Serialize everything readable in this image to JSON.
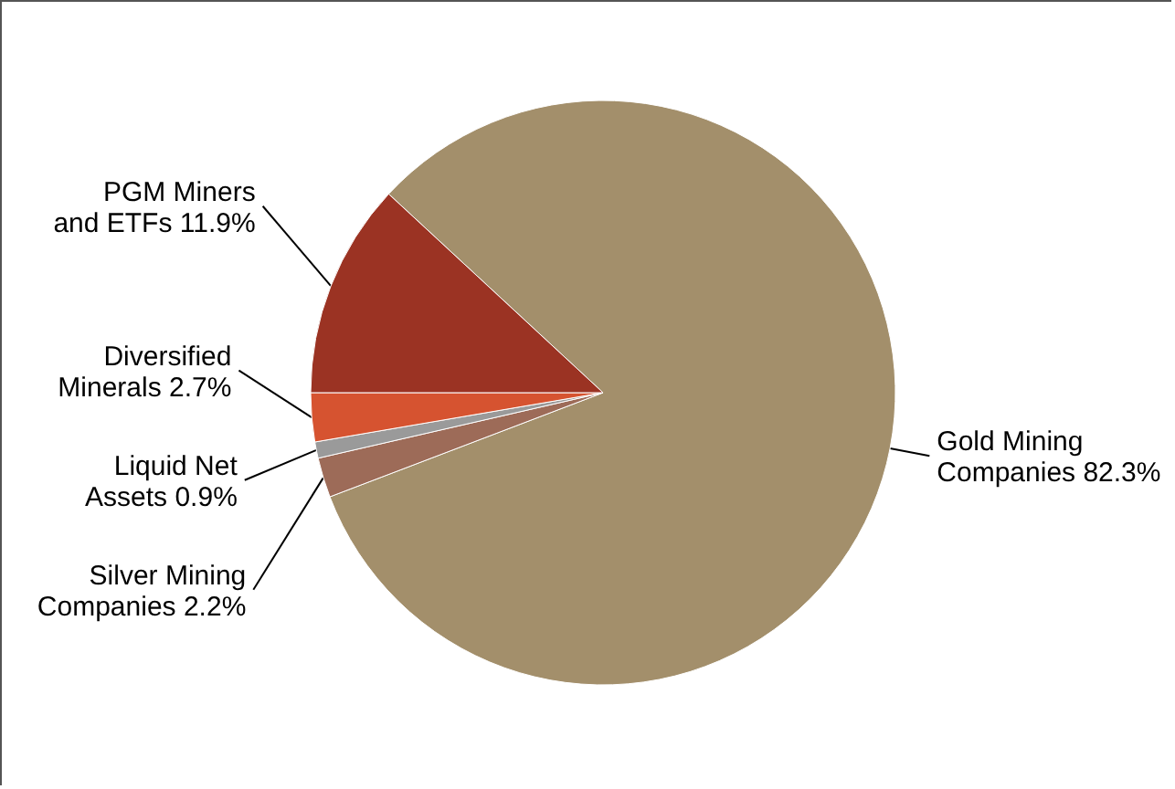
{
  "chart_data": {
    "type": "pie",
    "categories": [
      "Gold Mining Companies 82.3%",
      "Silver Mining Companies 2.2%",
      "Liquid Net Assets 0.9%",
      "Diversified Minerals 2.7%",
      "PGM Miners and ETFs 11.9%"
    ],
    "values": [
      82.3,
      2.2,
      0.9,
      2.7,
      11.9
    ],
    "colors": [
      "#a38f6b",
      "#9d6b58",
      "#9a9a9a",
      "#d65330",
      "#9b3323"
    ],
    "data_labels": false
  }
}
